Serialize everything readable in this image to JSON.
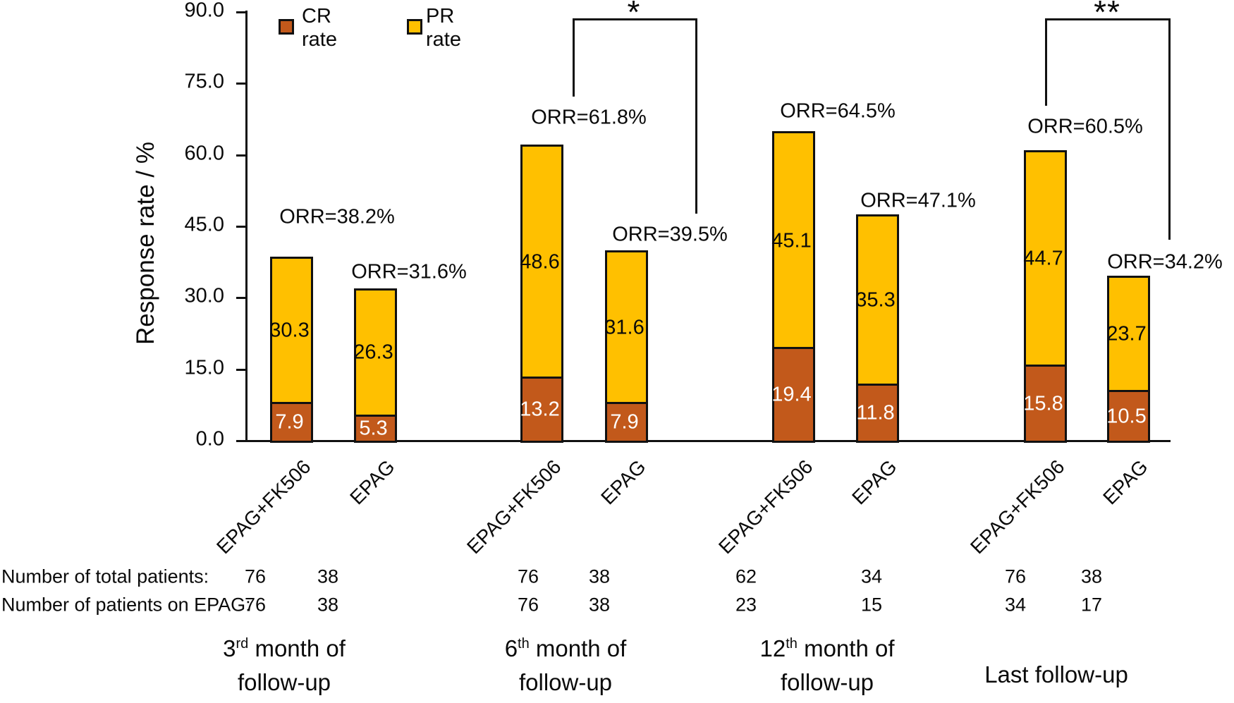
{
  "chart_data": {
    "type": "bar",
    "stacked": true,
    "ylabel": "Response rate / %",
    "ylim": [
      0,
      90
    ],
    "grid": false,
    "legend_position": "top-left-inside",
    "yticks": [
      {
        "value": 0,
        "label": "0.0"
      },
      {
        "value": 15,
        "label": "15.0"
      },
      {
        "value": 30,
        "label": "30.0"
      },
      {
        "value": 45,
        "label": "45.0"
      },
      {
        "value": 60,
        "label": "60.0"
      },
      {
        "value": 75,
        "label": "75.0"
      },
      {
        "value": 90,
        "label": "90.0"
      }
    ],
    "legend": [
      {
        "name": "CR rate",
        "color": "#C2591B"
      },
      {
        "name": "PR rate",
        "color": "#FFC000"
      }
    ],
    "colors": {
      "cr": "#C2591B",
      "pr": "#FFC000",
      "border": "#111111"
    },
    "groups": [
      {
        "label_prefix": "3",
        "label_sup": "rd",
        "label_suffix": " month of",
        "label_line2": "follow-up",
        "bars": [
          {
            "x_label": "EPAG+FK506",
            "cr": 7.9,
            "pr": 30.3,
            "orr_label": "ORR=38.2%",
            "total_patients": "76",
            "patients_on_epag": "76"
          },
          {
            "x_label": "EPAG",
            "cr": 5.3,
            "pr": 26.3,
            "orr_label": "ORR=31.6%",
            "total_patients": "38",
            "patients_on_epag": "38"
          }
        ]
      },
      {
        "label_prefix": "6",
        "label_sup": "th",
        "label_suffix": " month of",
        "label_line2": "follow-up",
        "bars": [
          {
            "x_label": "EPAG+FK506",
            "cr": 13.2,
            "pr": 48.6,
            "orr_label": "ORR=61.8%",
            "total_patients": "76",
            "patients_on_epag": "76"
          },
          {
            "x_label": "EPAG",
            "cr": 7.9,
            "pr": 31.6,
            "orr_label": "ORR=39.5%",
            "total_patients": "38",
            "patients_on_epag": "38"
          }
        ]
      },
      {
        "label_prefix": "12",
        "label_sup": "th",
        "label_suffix": " month of",
        "label_line2": "follow-up",
        "bars": [
          {
            "x_label": "EPAG+FK506",
            "cr": 19.4,
            "pr": 45.1,
            "orr_label": "ORR=64.5%",
            "total_patients": "62",
            "patients_on_epag": "23"
          },
          {
            "x_label": "EPAG",
            "cr": 11.8,
            "pr": 35.3,
            "orr_label": "ORR=47.1%",
            "total_patients": "34",
            "patients_on_epag": "15"
          }
        ]
      },
      {
        "label_prefix": "Last follow-up",
        "label_sup": "",
        "label_suffix": "",
        "label_line2": "",
        "bars": [
          {
            "x_label": "EPAG+FK506",
            "cr": 15.8,
            "pr": 44.7,
            "orr_label": "ORR=60.5%",
            "total_patients": "76",
            "patients_on_epag": "34"
          },
          {
            "x_label": "EPAG",
            "cr": 10.5,
            "pr": 23.7,
            "orr_label": "ORR=34.2%",
            "total_patients": "38",
            "patients_on_epag": "17"
          }
        ]
      }
    ],
    "significance": [
      {
        "label": "*",
        "compares": [
          "6th month EPAG+FK506",
          "6th month EPAG"
        ]
      },
      {
        "label": "**",
        "compares": [
          "Last follow-up EPAG+FK506",
          "Last follow-up EPAG"
        ]
      }
    ],
    "table": {
      "row1_label": "Number of total patients:",
      "row2_label": "Number of patients on EPAG:"
    }
  }
}
